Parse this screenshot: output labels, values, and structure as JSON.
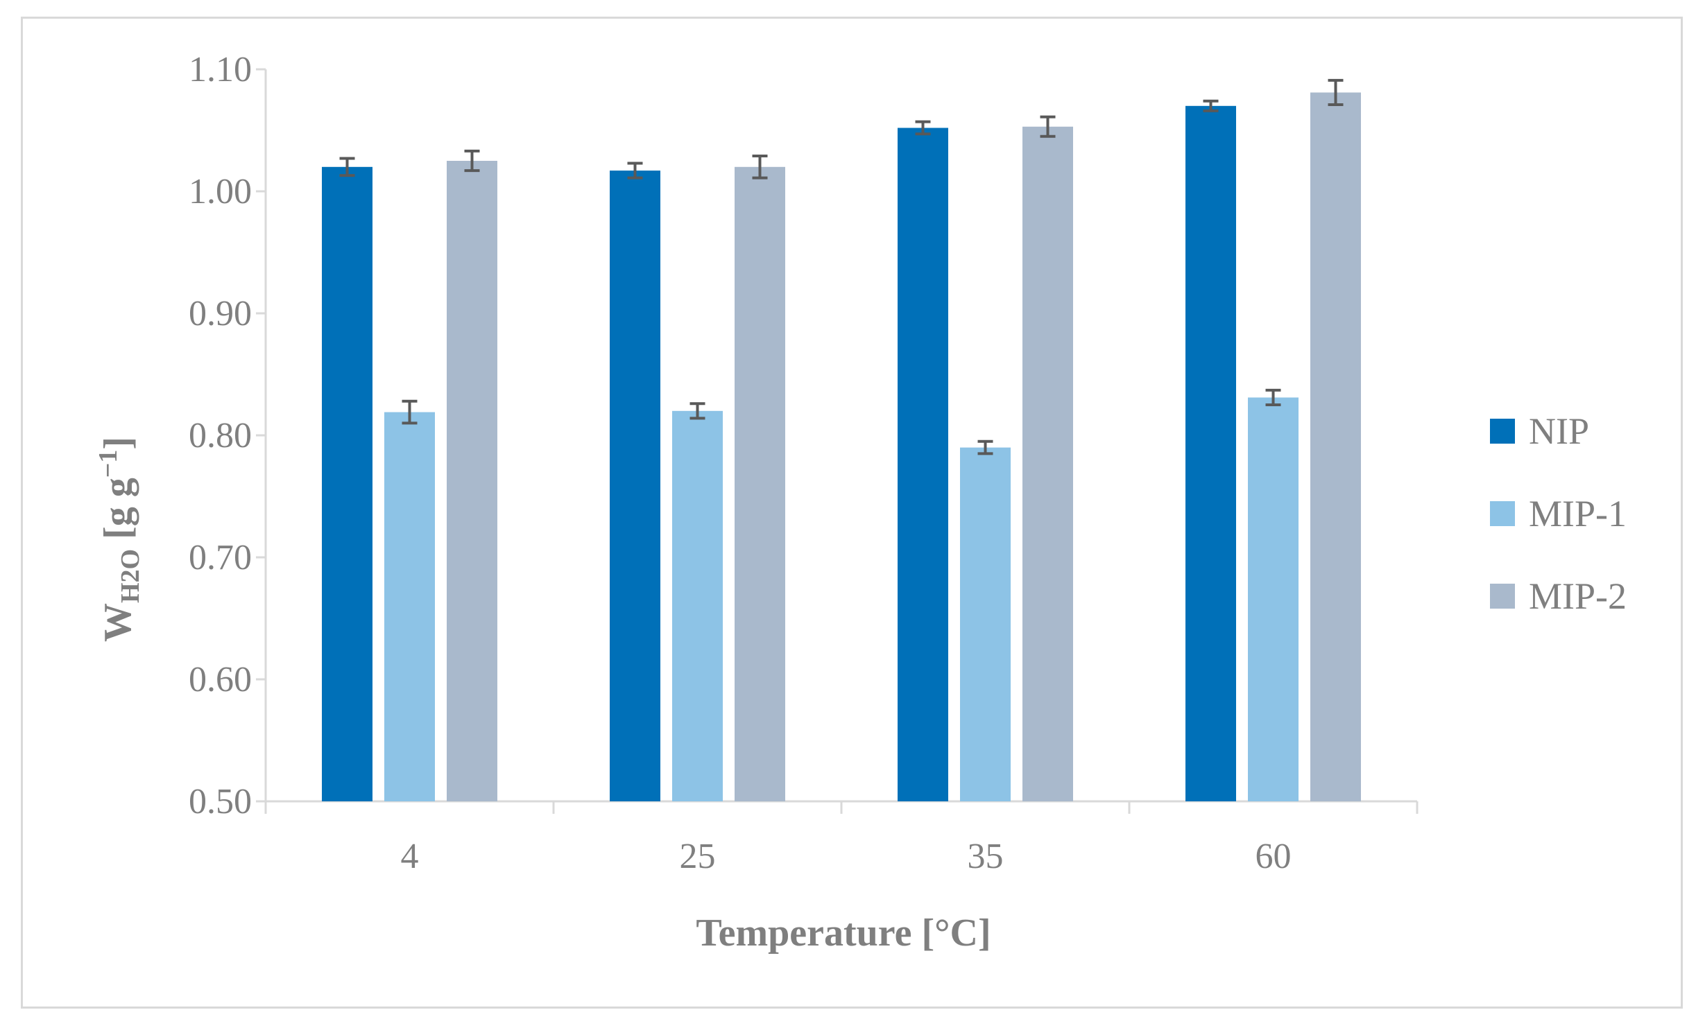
{
  "chart_data": {
    "type": "bar",
    "title": "",
    "xlabel": "Temperature  [°C]",
    "ylabel_main": "W",
    "ylabel_sub": "H2O",
    "ylabel_unit": "[g g",
    "ylabel_exp": "−1",
    "ylabel_close": "]",
    "categories": [
      "4",
      "25",
      "35",
      "60"
    ],
    "ylim": [
      0.5,
      1.1
    ],
    "yticks": [
      0.5,
      0.6,
      0.7,
      0.8,
      0.9,
      1.0,
      1.1
    ],
    "ytick_labels": [
      "0.50",
      "0.60",
      "0.70",
      "0.80",
      "0.90",
      "1.00",
      "1.10"
    ],
    "legend_position": "right",
    "series": [
      {
        "name": "NIP",
        "color": "#0070b8",
        "values": [
          1.02,
          1.017,
          1.052,
          1.07
        ],
        "errors": [
          0.007,
          0.006,
          0.005,
          0.004
        ]
      },
      {
        "name": "MIP-1",
        "color": "#8dc3e6",
        "values": [
          0.819,
          0.82,
          0.79,
          0.831
        ],
        "errors": [
          0.009,
          0.006,
          0.005,
          0.006
        ]
      },
      {
        "name": "MIP-2",
        "color": "#a9b9cc",
        "values": [
          1.025,
          1.02,
          1.053,
          1.081
        ],
        "errors": [
          0.008,
          0.009,
          0.008,
          0.01
        ]
      }
    ],
    "error_bar_color": "#595959",
    "axis_color": "#d9d9d9"
  }
}
